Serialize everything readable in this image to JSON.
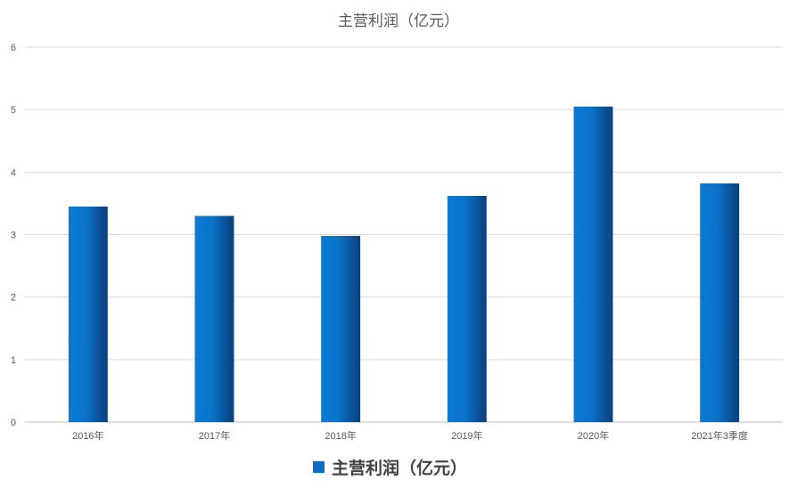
{
  "chart_data": {
    "type": "bar",
    "title": "主营利润（亿元）",
    "categories": [
      "2016年",
      "2017年",
      "2018年",
      "2019年",
      "2020年",
      "2021年3季度"
    ],
    "series": [
      {
        "name": "主营利润（亿元）",
        "values": [
          3.45,
          3.3,
          2.98,
          3.62,
          5.05,
          3.82
        ]
      }
    ],
    "ylim": [
      0,
      6
    ],
    "yticks": [
      0,
      1,
      2,
      3,
      4,
      5,
      6
    ],
    "grid": true,
    "legend_position": "bottom",
    "xlabel": "",
    "ylabel": ""
  },
  "colors": {
    "bar_light": "#0a7ad6",
    "bar_dark": "#0d3f7a",
    "grid": "#d9d9d9",
    "axis": "#bfbfbf",
    "legend_marker": "#0b6cc4"
  }
}
